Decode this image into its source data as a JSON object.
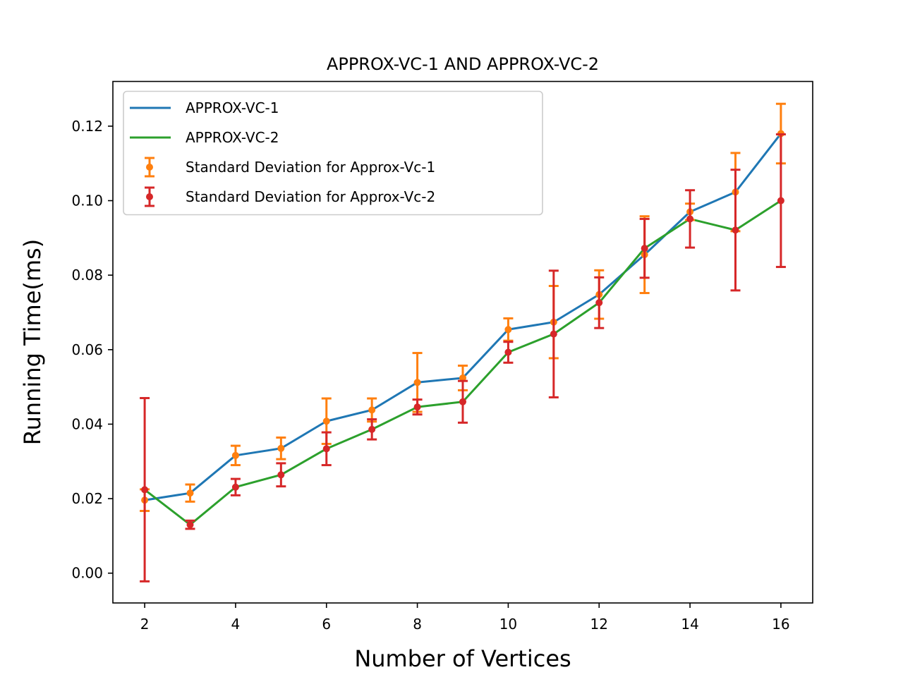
{
  "chart_data": {
    "type": "line",
    "title": "APPROX-VC-1 AND APPROX-VC-2",
    "xlabel": "Number of Vertices",
    "ylabel": "Running Time(ms)",
    "xlim": [
      1.3,
      16.7
    ],
    "ylim": [
      -0.008,
      0.132
    ],
    "xticks": [
      "2",
      "4",
      "6",
      "8",
      "10",
      "12",
      "14",
      "16"
    ],
    "yticks": [
      "0.00",
      "0.02",
      "0.04",
      "0.06",
      "0.08",
      "0.10",
      "0.12"
    ],
    "grid": false,
    "legend_position": "top-left",
    "x": [
      2,
      3,
      4,
      5,
      6,
      7,
      8,
      9,
      10,
      11,
      12,
      13,
      14,
      15,
      16
    ],
    "series": [
      {
        "name": "APPROX-VC-1",
        "color": "#1f77b4",
        "values": [
          0.0196,
          0.0215,
          0.0316,
          0.0335,
          0.0408,
          0.0438,
          0.0512,
          0.0524,
          0.0654,
          0.0674,
          0.0748,
          0.0855,
          0.097,
          0.1023,
          0.118
        ]
      },
      {
        "name": "APPROX-VC-2",
        "color": "#2ca02c",
        "values": [
          0.0224,
          0.013,
          0.0231,
          0.0264,
          0.0334,
          0.0386,
          0.0446,
          0.046,
          0.0593,
          0.0642,
          0.0726,
          0.0872,
          0.0951,
          0.0921,
          0.1
        ]
      }
    ],
    "errorbars": [
      {
        "name": "Standard Deviation for Approx-Vc-1",
        "color": "#ff7f0e",
        "of_series": 0,
        "err": [
          0.0029,
          0.0023,
          0.0026,
          0.0029,
          0.0061,
          0.0031,
          0.0079,
          0.0033,
          0.003,
          0.0097,
          0.0065,
          0.0103,
          0.0022,
          0.0105,
          0.008
        ]
      },
      {
        "name": "Standard Deviation for Approx-Vc-2",
        "color": "#d62728",
        "of_series": 1,
        "err": [
          0.0246,
          0.0011,
          0.0022,
          0.0031,
          0.0044,
          0.0027,
          0.002,
          0.0056,
          0.0028,
          0.017,
          0.0068,
          0.0079,
          0.0077,
          0.0162,
          0.0178
        ]
      }
    ]
  }
}
